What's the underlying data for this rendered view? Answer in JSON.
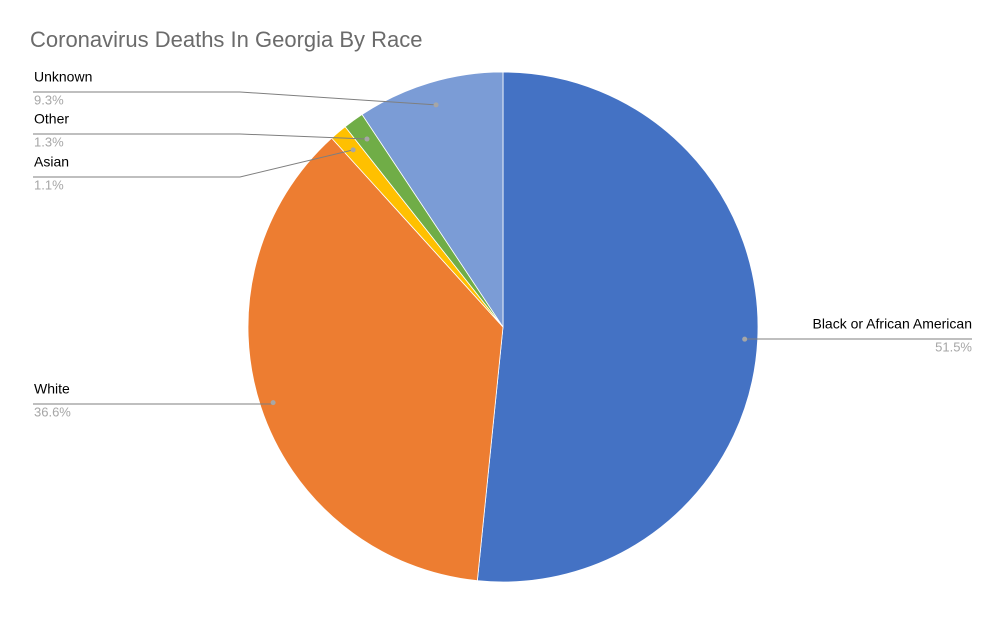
{
  "chart_data": {
    "type": "pie",
    "title": "Coronavirus Deaths In Georgia By Race",
    "categories": [
      "Black or African American",
      "White",
      "Asian",
      "Other",
      "Unknown"
    ],
    "values": [
      51.5,
      36.6,
      1.1,
      1.3,
      9.3
    ],
    "value_labels": [
      "51.5%",
      "36.6%",
      "1.1%",
      "1.3%",
      "9.3%"
    ],
    "colors": [
      "#4472c4",
      "#ed7d31",
      "#ffc000",
      "#70ad47",
      "#7b9cd6"
    ]
  }
}
